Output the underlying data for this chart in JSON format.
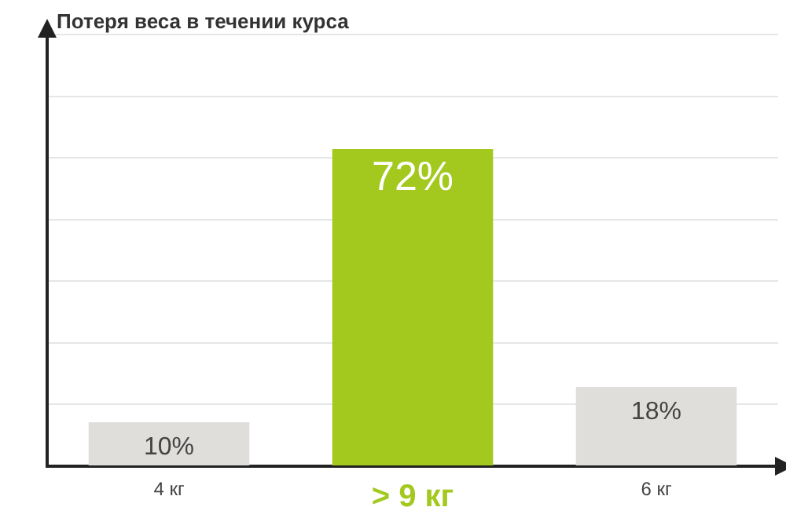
{
  "chart_data": {
    "type": "bar",
    "title": "Потеря веса в течении курса",
    "categories": [
      "4 кг",
      "> 9 кг",
      "6 кг"
    ],
    "values": [
      10,
      72,
      18
    ],
    "colors": [
      "#e0dedb",
      "#a3c81e",
      "#e0dedb"
    ],
    "value_labels": [
      "10%",
      "72%",
      "18%"
    ],
    "grid": "y",
    "tick_labels": "x",
    "legend": false
  }
}
